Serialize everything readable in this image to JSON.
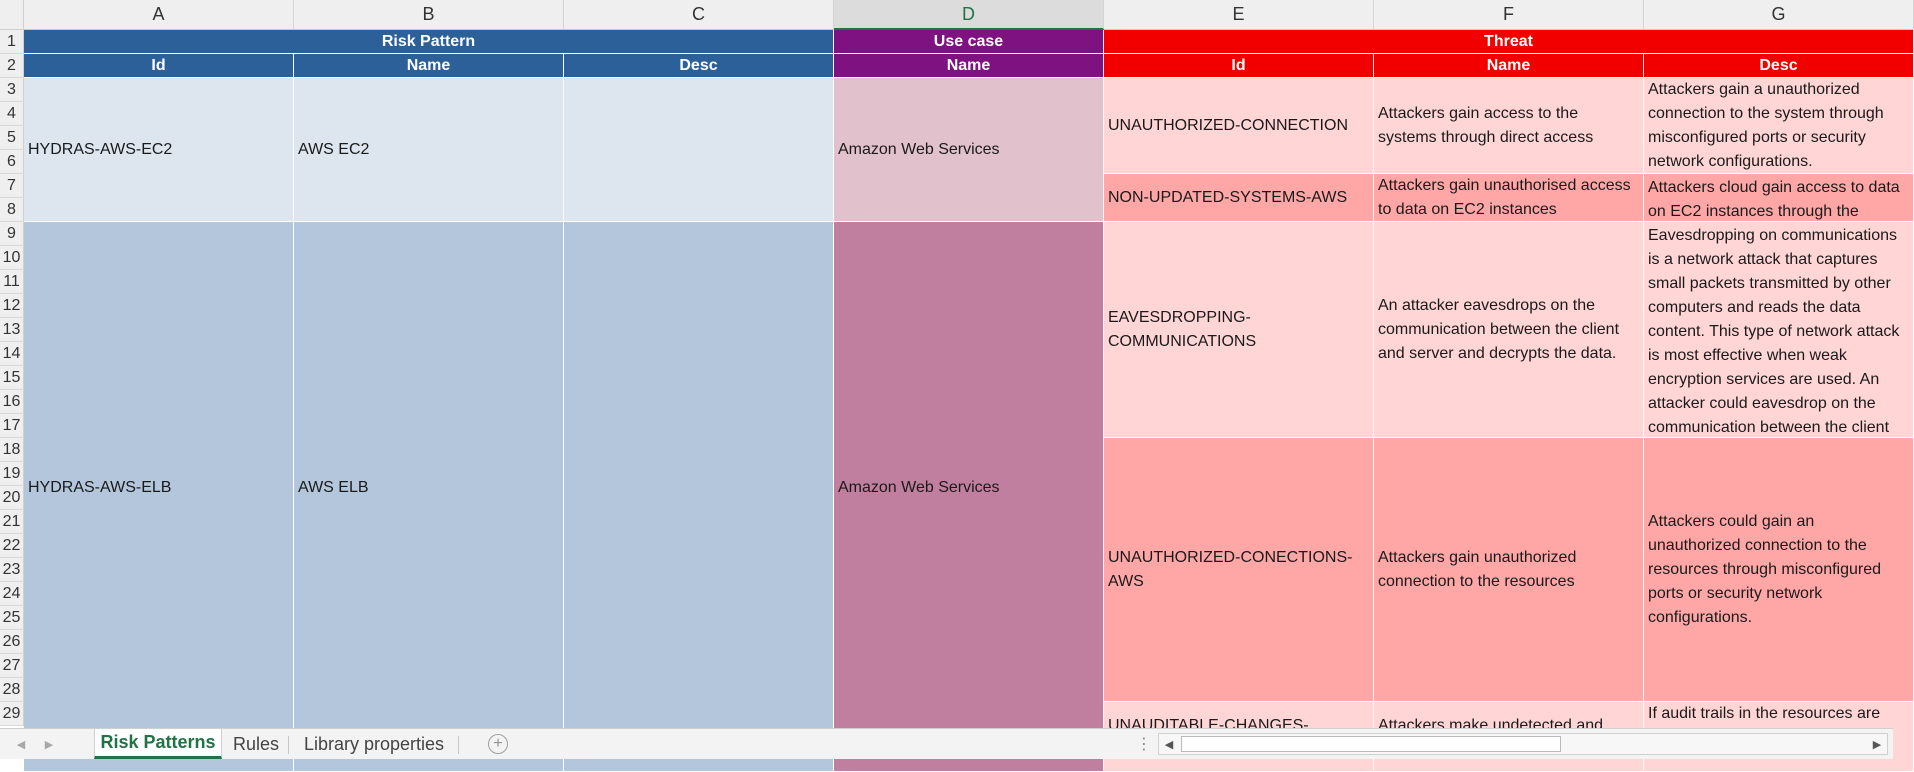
{
  "colors": {
    "risk_header": "#2b6099",
    "usecase_header": "#7f1281",
    "threat_header": "#f20000",
    "ec2_fill": "#dde5ef",
    "elb_fill": "#b4c6dc",
    "usecase_ec2": "#e1c1cb",
    "usecase_elb": "#c07f9e",
    "threat_light": "#ffd5d5",
    "threat_mid": "#ffa6a6",
    "accent": "#217346"
  },
  "columns": [
    "A",
    "B",
    "C",
    "D",
    "E",
    "F",
    "G"
  ],
  "selected_column": "D",
  "rows": [
    "1",
    "2",
    "3",
    "4",
    "5",
    "6",
    "7",
    "8",
    "9",
    "10",
    "11",
    "12",
    "13",
    "14",
    "15",
    "16",
    "17",
    "18",
    "19",
    "20",
    "21",
    "22",
    "23",
    "24",
    "25",
    "26",
    "27",
    "28",
    "29"
  ],
  "header_groups": {
    "risk_pattern": "Risk Pattern",
    "use_case": "Use case",
    "threat": "Threat"
  },
  "subheaders": {
    "a": "Id",
    "b": "Name",
    "c": "Desc",
    "d": "Name",
    "e": "Id",
    "f": "Name",
    "g": "Desc"
  },
  "risk_patterns": [
    {
      "id": "HYDRAS-AWS-EC2",
      "name": "AWS EC2",
      "desc": "",
      "use_case": "Amazon Web Services"
    },
    {
      "id": "HYDRAS-AWS-ELB",
      "name": "AWS ELB",
      "desc": "",
      "use_case": "Amazon Web Services"
    }
  ],
  "threats": [
    {
      "id": "UNAUTHORIZED-CONNECTION",
      "name": "Attackers gain access to the systems through direct access",
      "desc": "Attackers gain a unauthorized connection to the system through misconfigured ports or security network configurations."
    },
    {
      "id": "NON-UPDATED-SYSTEMS-AWS",
      "name": "Attackers gain unauthorised access to data on EC2 instances",
      "desc": "Attackers cloud gain access to data on EC2 instances through the"
    },
    {
      "id": "EAVESDROPPING-COMMUNICATIONS",
      "name": "An attacker eavesdrops on the communication between the client and server and decrypts the data.",
      "desc": "Eavesdropping on communications is a network attack that captures small packets transmitted by other computers and reads the data content. This type of network attack is most effective when weak encryption services are used. An attacker could eavesdrop on the communication between the client"
    },
    {
      "id": "UNAUTHORIZED-CONECTIONS-AWS",
      "name": "Attackers gain unauthorized connection to the resources",
      "desc": "Attackers could gain an unauthorized connection to the resources through misconfigured ports or security network configurations."
    },
    {
      "id": "UNAUDITABLE-CHANGES-",
      "name": "Attackers make undetected and",
      "desc": "If audit trails in the resources are"
    }
  ],
  "sheet_tabs": [
    "Risk Patterns",
    "Rules",
    "Library properties"
  ],
  "active_tab": "Risk Patterns",
  "icons": {
    "tab_prev": "triangle-left-icon",
    "tab_next": "triangle-right-icon",
    "add_sheet": "plus-circle-icon",
    "options": "vertical-dots-icon",
    "scroll_left": "caret-left-icon",
    "scroll_right": "caret-right-icon"
  }
}
